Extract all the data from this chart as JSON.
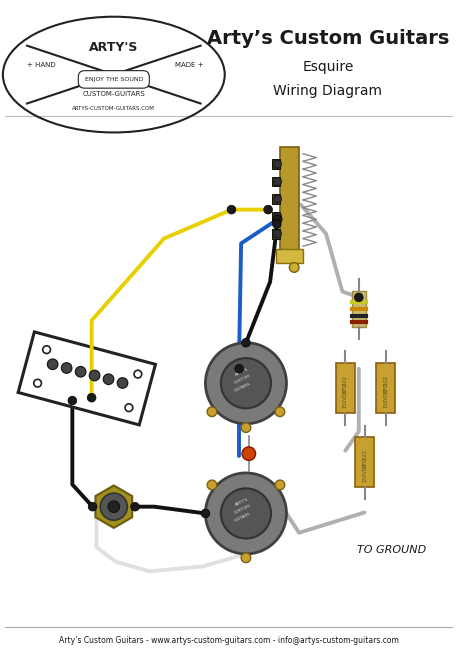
{
  "title": "Arty’s Custom Guitars",
  "subtitle1": "Esquire",
  "subtitle2": "Wiring Diagram",
  "footer": "Arty’s Custom Guitars - www.artys-custom-guitars.com - info@artys-custom-guitars.com",
  "to_ground_label": "TO GROUND",
  "bg_color": "#ffffff",
  "title_color": "#1a1a1a",
  "wire_yellow": "#e8d000",
  "wire_blue": "#1a5cc8",
  "wire_black": "#111111",
  "wire_gray": "#b0b0b0",
  "wire_white": "#e0e0e0",
  "component_gold": "#c8a030",
  "component_dark": "#222222",
  "pot_gray": "#888888",
  "pot_dark": "#555555",
  "lug_gold": "#c8a030",
  "cap_body": "#c8a030",
  "resistor_body": "#c8a060",
  "switch_gold": "#b8982a",
  "switch_dark": "#444422",
  "jack_gold": "#a08020",
  "pickup_outline": "#222222",
  "pickup_pole": "#444444",
  "solder_dot": "#1a1a1a",
  "spring_color": "#888888"
}
